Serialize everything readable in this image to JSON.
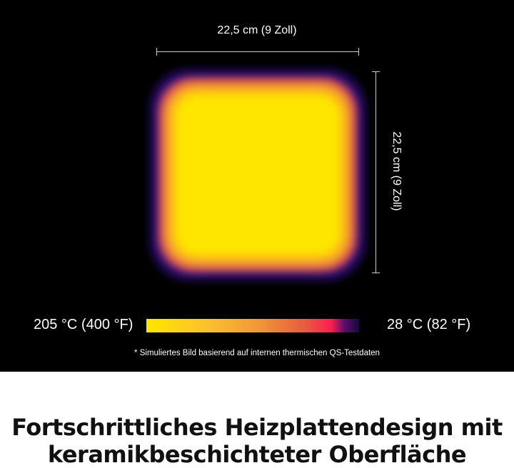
{
  "dimensions": {
    "width_label": "22,5 cm (9 Zoll)",
    "height_label": "22,5 cm (9 Zoll)"
  },
  "legend": {
    "hot_label": "205 °C (400 °F)",
    "cold_label": "28 °C (82 °F)",
    "colors": [
      "#ffe600",
      "#f0923a",
      "#fb1e50",
      "#15083a"
    ]
  },
  "footnote": "* Simuliertes Bild basierend auf internen thermischen QS-Testdaten",
  "heading": {
    "line1": "Fortschrittliches Heizplattendesign mit",
    "line2": "keramikbeschichteter Oberfläche"
  }
}
